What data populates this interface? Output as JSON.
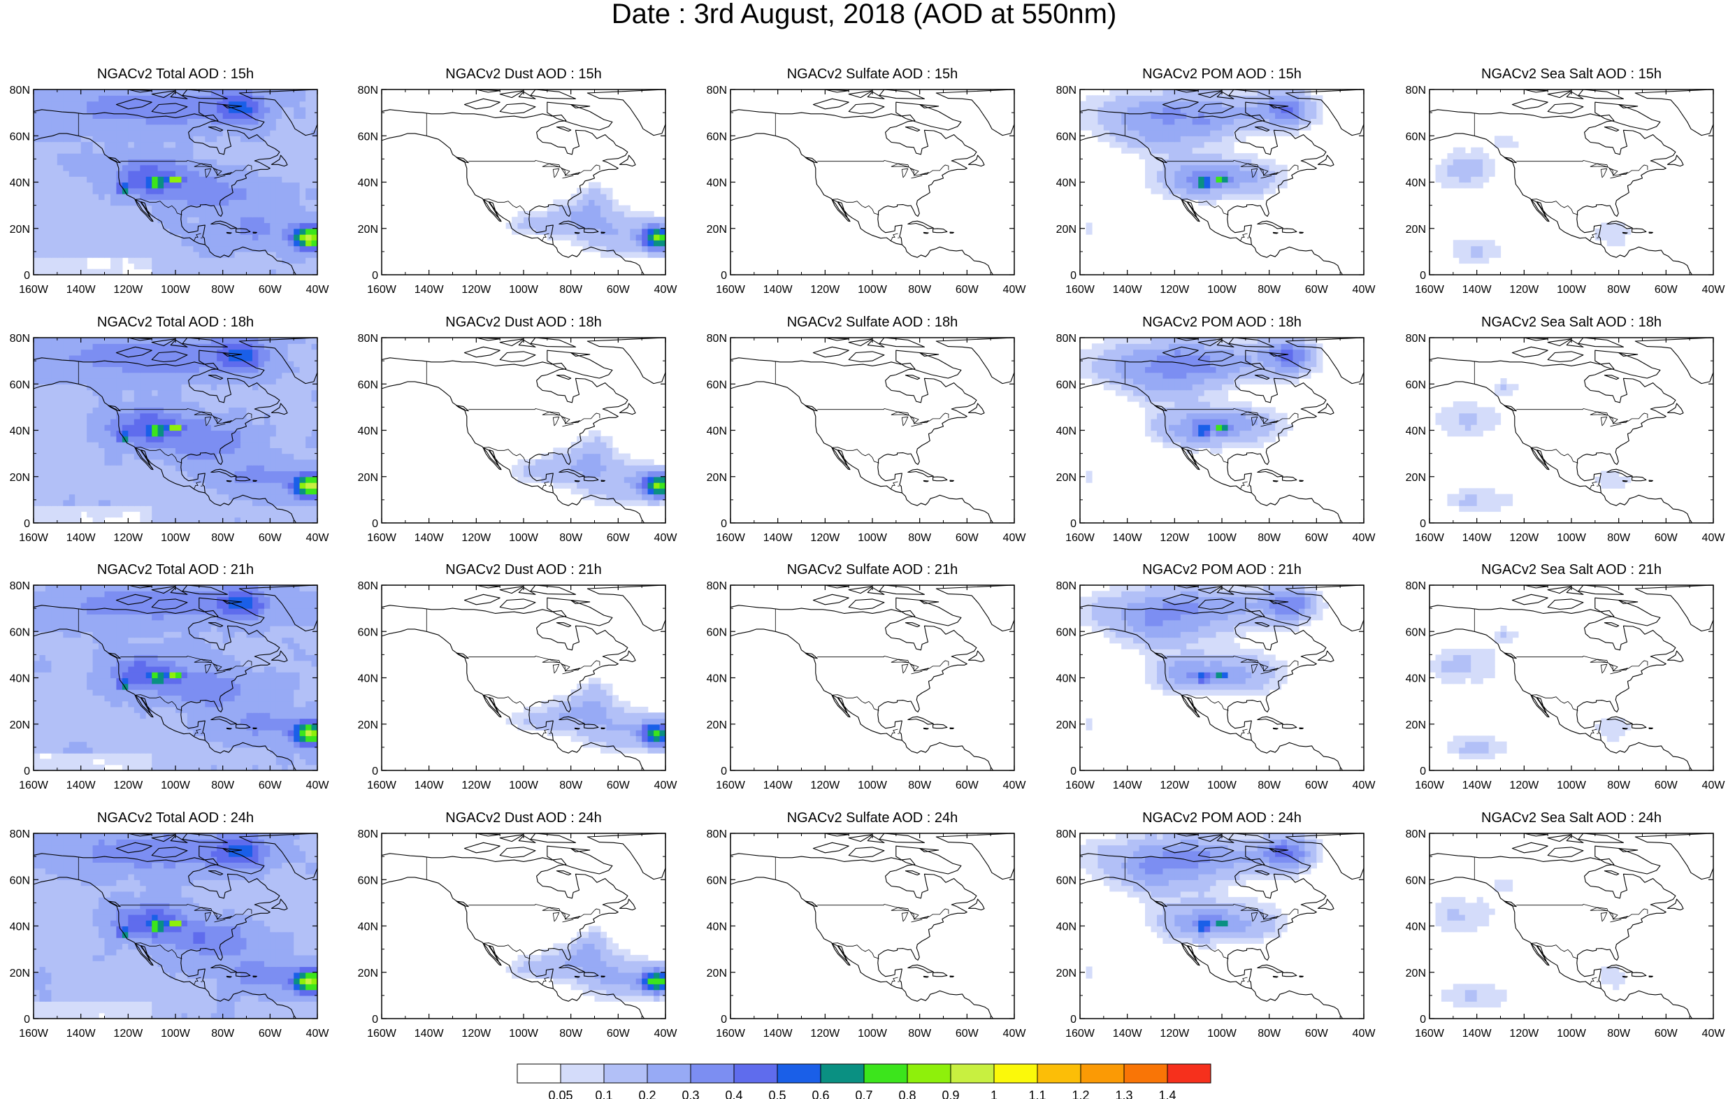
{
  "figure": {
    "title": "Date : 3rd August, 2018 (AOD at 550nm)"
  },
  "axes": {
    "lat_ticks": [
      "80N",
      "60N",
      "40N",
      "20N",
      "0"
    ],
    "lon_ticks": [
      "160W",
      "140W",
      "120W",
      "100W",
      "80W",
      "60W",
      "40W"
    ],
    "lat_range": [
      0,
      80
    ],
    "lon_range": [
      -160,
      -40
    ]
  },
  "panels": [
    {
      "title": "NGACv2 Total AOD : 15h",
      "species": "total"
    },
    {
      "title": "NGACv2 Dust AOD : 15h",
      "species": "dust"
    },
    {
      "title": "NGACv2 Sulfate AOD : 15h",
      "species": "sulfate"
    },
    {
      "title": "NGACv2 POM AOD : 15h",
      "species": "pom"
    },
    {
      "title": "NGACv2 Sea Salt AOD : 15h",
      "species": "seasalt"
    },
    {
      "title": "NGACv2 Total AOD : 18h",
      "species": "total"
    },
    {
      "title": "NGACv2 Dust AOD : 18h",
      "species": "dust"
    },
    {
      "title": "NGACv2 Sulfate AOD : 18h",
      "species": "sulfate"
    },
    {
      "title": "NGACv2 POM AOD : 18h",
      "species": "pom"
    },
    {
      "title": "NGACv2 Sea Salt AOD : 18h",
      "species": "seasalt"
    },
    {
      "title": "NGACv2 Total AOD : 21h",
      "species": "total"
    },
    {
      "title": "NGACv2 Dust AOD : 21h",
      "species": "dust"
    },
    {
      "title": "NGACv2 Sulfate AOD : 21h",
      "species": "sulfate"
    },
    {
      "title": "NGACv2 POM AOD : 21h",
      "species": "pom"
    },
    {
      "title": "NGACv2 Sea Salt AOD : 21h",
      "species": "seasalt"
    },
    {
      "title": "NGACv2 Total AOD : 24h",
      "species": "total"
    },
    {
      "title": "NGACv2 Dust AOD : 24h",
      "species": "dust"
    },
    {
      "title": "NGACv2 Sulfate AOD : 24h",
      "species": "sulfate"
    },
    {
      "title": "NGACv2 POM AOD : 24h",
      "species": "pom"
    },
    {
      "title": "NGACv2 Sea Salt  AOD : 24h",
      "species": "seasalt"
    }
  ],
  "colorbar": {
    "labels": [
      "0.05",
      "0.1",
      "0.2",
      "0.3",
      "0.4",
      "0.5",
      "0.6",
      "0.7",
      "0.8",
      "0.9",
      "1",
      "1.1",
      "1.2",
      "1.3",
      "1.4"
    ],
    "colors": [
      "#ffffff",
      "#d4dcfa",
      "#b2c0f7",
      "#97aaf5",
      "#7c8ef2",
      "#5f6ced",
      "#1a5fe8",
      "#0a9082",
      "#3ce51c",
      "#8ef00b",
      "#c8f040",
      "#fbf90a",
      "#fcbe07",
      "#fb9a05",
      "#f97506",
      "#f6301c"
    ]
  }
}
